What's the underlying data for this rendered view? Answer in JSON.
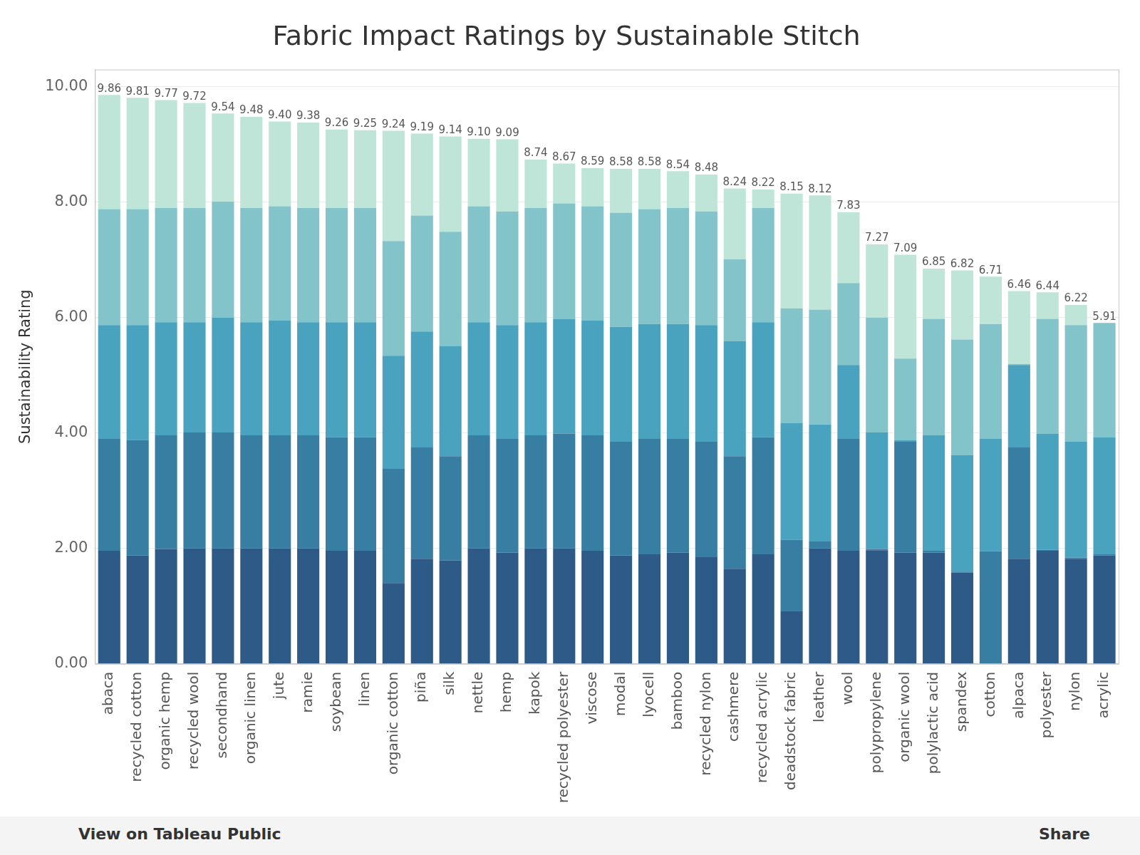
{
  "chart_data": {
    "type": "bar",
    "title": "Fabric Impact Ratings by Sustainable Stitch",
    "y_label": "Sustainability Rating",
    "stacked": true,
    "grid": true,
    "data_labels": true,
    "categories": [
      "abaca",
      "recycled cotton",
      "organic hemp",
      "recycled wool",
      "secondhand",
      "organic linen",
      "jute",
      "ramie",
      "soybean",
      "linen",
      "organic cotton",
      "piña",
      "silk",
      "nettle",
      "hemp",
      "kapok",
      "recycled polyester",
      "viscose",
      "modal",
      "lyocell",
      "bamboo",
      "recycled nylon",
      "cashmere",
      "recycled acrylic",
      "deadstock fabric",
      "leather",
      "wool",
      "polypropylene",
      "organic wool",
      "polylactic acid",
      "spandex",
      "cotton",
      "alpaca",
      "polyester",
      "nylon",
      "acrylic"
    ],
    "series": [
      {
        "color": "#2e5a87",
        "values": [
          1.96,
          1.88,
          1.99,
          2.0,
          2.0,
          2.0,
          2.0,
          2.0,
          1.96,
          1.96,
          1.4,
          1.82,
          1.79,
          2.0,
          1.93,
          2.0,
          2.0,
          1.96,
          1.88,
          1.9,
          1.93,
          1.85,
          1.65,
          1.9,
          0.92,
          2.0,
          1.96,
          1.97,
          1.93,
          1.93,
          1.58,
          0,
          1.82,
          1.96,
          1.82,
          1.88
        ]
      },
      {
        "color": "#387ea2",
        "values": [
          1.94,
          2.0,
          1.97,
          2.01,
          2.01,
          1.96,
          1.96,
          1.96,
          1.97,
          1.97,
          1.98,
          1.94,
          1.81,
          1.96,
          1.97,
          1.96,
          1.99,
          2.0,
          1.97,
          2.0,
          1.97,
          2.0,
          1.95,
          2.03,
          1.23,
          0.12,
          1.94,
          0.02,
          1.93,
          0.03,
          0.02,
          1.95,
          1.94,
          0.02,
          0.02,
          0.02
        ]
      },
      {
        "color": "#49a3be",
        "values": [
          1.97,
          1.99,
          1.96,
          1.91,
          1.99,
          1.96,
          1.99,
          1.96,
          1.99,
          1.99,
          1.96,
          2.0,
          1.91,
          1.96,
          1.97,
          1.96,
          1.99,
          1.99,
          1.99,
          1.99,
          1.99,
          2.02,
          1.99,
          1.99,
          2.02,
          2.03,
          1.28,
          2.02,
          0.02,
          2.0,
          2.02,
          1.95,
          1.42,
          2.01,
          2.01,
          2.03
        ]
      },
      {
        "color": "#83c3ca",
        "values": [
          2.01,
          2.01,
          1.98,
          1.98,
          2.01,
          1.98,
          1.98,
          1.98,
          1.98,
          1.98,
          1.99,
          2.01,
          1.98,
          2.01,
          1.97,
          1.98,
          2.0,
          1.98,
          1.98,
          1.99,
          2.01,
          1.97,
          1.42,
          1.98,
          1.99,
          1.99,
          1.42,
          1.99,
          1.41,
          2.02,
          2.0,
          1.99,
          0.02,
          1.99,
          2.02,
          1.98
        ]
      },
      {
        "color": "#bfe5d9",
        "values": [
          1.98,
          1.93,
          1.87,
          1.82,
          1.53,
          1.58,
          1.47,
          1.48,
          1.36,
          1.35,
          1.91,
          1.42,
          1.65,
          1.17,
          1.25,
          0.84,
          0.69,
          0.66,
          0.76,
          0.7,
          0.64,
          0.64,
          1.23,
          0.32,
          1.99,
          1.98,
          1.23,
          1.27,
          1.8,
          0.87,
          1.2,
          0.82,
          1.26,
          0.46,
          0.35,
          0
        ]
      }
    ],
    "totals": [
      9.86,
      9.81,
      9.77,
      9.72,
      9.54,
      9.48,
      9.4,
      9.38,
      9.26,
      9.25,
      9.24,
      9.19,
      9.14,
      9.1,
      9.09,
      8.74,
      8.67,
      8.59,
      8.58,
      8.58,
      8.54,
      8.48,
      8.24,
      8.22,
      8.15,
      8.12,
      7.83,
      7.27,
      7.09,
      6.85,
      6.82,
      6.71,
      6.46,
      6.44,
      6.22,
      5.91
    ],
    "total_labels": [
      "9.86",
      "9.81",
      "9.77",
      "9.72",
      "9.54",
      "9.48",
      "9.40",
      "9.38",
      "9.26",
      "9.25",
      "9.24",
      "9.19",
      "9.14",
      "9.10",
      "9.09",
      "8.74",
      "8.67",
      "8.59",
      "8.58",
      "8.58",
      "8.54",
      "8.48",
      "8.24",
      "8.22",
      "8.15",
      "8.12",
      "7.83",
      "7.27",
      "7.09",
      "6.85",
      "6.82",
      "6.71",
      "6.46",
      "6.44",
      "6.22",
      "5.91"
    ],
    "ylim": [
      0,
      10.3
    ],
    "yticks": [
      {
        "value": 0,
        "label": "0.00"
      },
      {
        "value": 2,
        "label": "2.00"
      },
      {
        "value": 4,
        "label": "4.00"
      },
      {
        "value": 6,
        "label": "6.00"
      },
      {
        "value": 8,
        "label": "8.00"
      },
      {
        "value": 10,
        "label": "10.00"
      }
    ]
  },
  "toolbar": {
    "left": "View on Tableau Public",
    "right": "Share"
  }
}
